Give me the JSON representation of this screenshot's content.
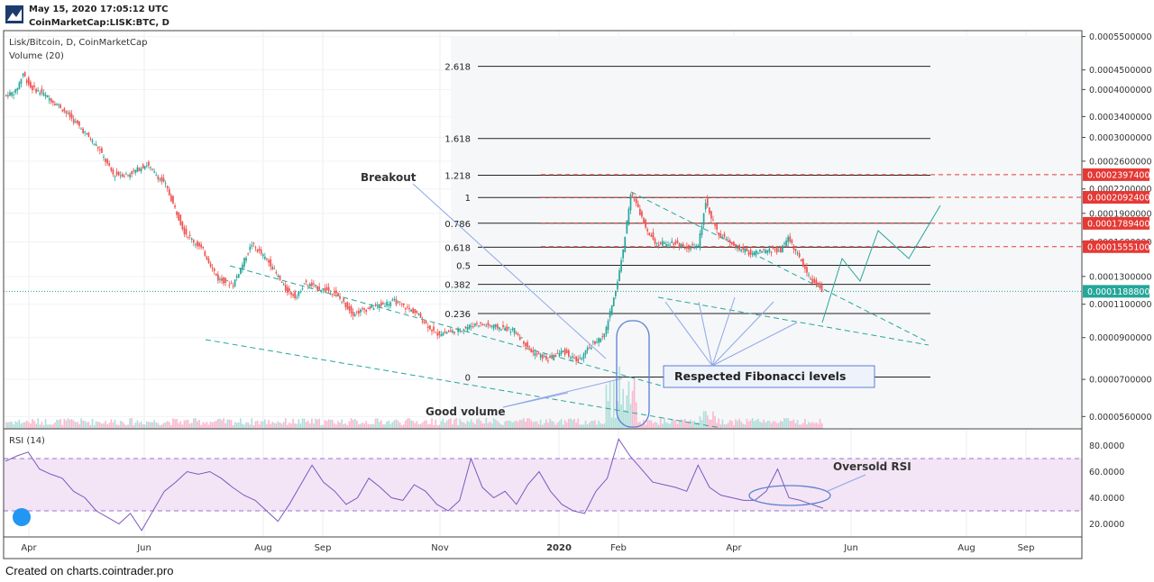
{
  "header": {
    "timestamp": "May 15, 2020 17:05:12 UTC",
    "symbol_line": "CoinMarketCap:LISK:BTC, D"
  },
  "footer": {
    "credit": "Created on charts.cointrader.pro"
  },
  "colors": {
    "up": "#26a69a",
    "down": "#ef5350",
    "fib": "#222222",
    "red_dash": "#e53935",
    "trend": "#26a69a",
    "rsi_line": "#7e57c2",
    "rsi_band": "#f3e5f5",
    "annot": "#8fa6e8",
    "ellipse": "#5b7fd1",
    "price_label_bg": "#e53935",
    "current_label_bg": "#26a69a"
  },
  "chart_data": [
    {
      "type": "candlestick",
      "title": "Lisk/Bitcoin, D, CoinMarketCap",
      "subtitle": "Volume (20)",
      "grid": true,
      "x_ticks": [
        "Apr",
        "Jun",
        "Aug",
        "Sep",
        "Nov",
        "2020",
        "Feb",
        "Apr",
        "Jun",
        "Aug",
        "Sep"
      ],
      "y_scale": "log",
      "y_ticks": [
        "0.0005500000",
        "0.0004500000",
        "0.0004000000",
        "0.0003400000",
        "0.0003000000",
        "0.0002600000",
        "0.0002200000",
        "0.0001900000",
        "0.0001600000",
        "0.0001300000",
        "0.0001100000",
        "0.0000900000",
        "0.0000700000",
        "0.0000560000"
      ],
      "y_tick_values": [
        0.00055,
        0.00045,
        0.0004,
        0.00034,
        0.0003,
        0.00026,
        0.00022,
        0.00019,
        0.00016,
        0.00013,
        0.00011,
        9e-05,
        7e-05,
        5.6e-05
      ],
      "ylim": [
        5.2e-05,
        0.00057
      ],
      "price_path": [
        {
          "t": 0,
          "p": 0.000385
        },
        {
          "t": 6,
          "p": 0.000395
        },
        {
          "t": 10,
          "p": 0.00044
        },
        {
          "t": 14,
          "p": 0.000405
        },
        {
          "t": 20,
          "p": 0.000392
        },
        {
          "t": 30,
          "p": 0.00036
        },
        {
          "t": 40,
          "p": 0.00032
        },
        {
          "t": 50,
          "p": 0.000282
        },
        {
          "t": 58,
          "p": 0.00024
        },
        {
          "t": 66,
          "p": 0.00024
        },
        {
          "t": 76,
          "p": 0.000255
        },
        {
          "t": 86,
          "p": 0.000225
        },
        {
          "t": 96,
          "p": 0.00017
        },
        {
          "t": 106,
          "p": 0.000152
        },
        {
          "t": 114,
          "p": 0.000128
        },
        {
          "t": 122,
          "p": 0.000124
        },
        {
          "t": 132,
          "p": 0.000158
        },
        {
          "t": 142,
          "p": 0.00014
        },
        {
          "t": 150,
          "p": 0.00012
        },
        {
          "t": 156,
          "p": 0.000115
        },
        {
          "t": 160,
          "p": 0.000125
        },
        {
          "t": 166,
          "p": 0.000122
        },
        {
          "t": 176,
          "p": 0.000118
        },
        {
          "t": 186,
          "p": 0.000104
        },
        {
          "t": 196,
          "p": 0.000108
        },
        {
          "t": 208,
          "p": 0.000112
        },
        {
          "t": 220,
          "p": 0.000104
        },
        {
          "t": 230,
          "p": 9.2e-05
        },
        {
          "t": 242,
          "p": 9.4e-05
        },
        {
          "t": 252,
          "p": 9.8e-05
        },
        {
          "t": 262,
          "p": 9.6e-05
        },
        {
          "t": 272,
          "p": 9.4e-05
        },
        {
          "t": 282,
          "p": 8.2e-05
        },
        {
          "t": 290,
          "p": 7.9e-05
        },
        {
          "t": 298,
          "p": 8.3e-05
        },
        {
          "t": 306,
          "p": 7.8e-05
        },
        {
          "t": 314,
          "p": 8.7e-05
        },
        {
          "t": 320,
          "p": 9.1e-05
        },
        {
          "t": 326,
          "p": 0.00012
        },
        {
          "t": 330,
          "p": 0.000152
        },
        {
          "t": 334,
          "p": 0.000215
        },
        {
          "t": 338,
          "p": 0.000195
        },
        {
          "t": 342,
          "p": 0.000175
        },
        {
          "t": 348,
          "p": 0.000158
        },
        {
          "t": 356,
          "p": 0.00016
        },
        {
          "t": 364,
          "p": 0.000155
        },
        {
          "t": 370,
          "p": 0.000155
        },
        {
          "t": 374,
          "p": 0.000205
        },
        {
          "t": 380,
          "p": 0.00017
        },
        {
          "t": 388,
          "p": 0.000157
        },
        {
          "t": 398,
          "p": 0.000149
        },
        {
          "t": 408,
          "p": 0.000152
        },
        {
          "t": 414,
          "p": 0.000152
        },
        {
          "t": 418,
          "p": 0.000165
        },
        {
          "t": 424,
          "p": 0.000145
        },
        {
          "t": 430,
          "p": 0.000128
        },
        {
          "t": 436,
          "p": 0.00012
        }
      ],
      "fib_levels": [
        {
          "label": "2.618",
          "value": 0.00046
        },
        {
          "label": "1.618",
          "value": 0.000298
        },
        {
          "label": "1.218",
          "value": 0.000239
        },
        {
          "label": "1",
          "value": 0.000209
        },
        {
          "label": "0.786",
          "value": 0.000179
        },
        {
          "label": "0.618",
          "value": 0.000155
        },
        {
          "label": "0.5",
          "value": 0.000139
        },
        {
          "label": "0.382",
          "value": 0.000124
        },
        {
          "label": "0.236",
          "value": 0.000104
        },
        {
          "label": "0",
          "value": 7.1e-05
        }
      ],
      "price_labels": [
        {
          "text": "0.0002397400",
          "value": 0.00023974,
          "kind": "target"
        },
        {
          "text": "0.0002092400",
          "value": 0.00020924,
          "kind": "target"
        },
        {
          "text": "0.0001789400",
          "value": 0.00017894,
          "kind": "target"
        },
        {
          "text": "0.0001555100",
          "value": 0.00015551,
          "kind": "target"
        },
        {
          "text": "0.0001188800",
          "value": 0.00011888,
          "kind": "current"
        }
      ],
      "annotations": [
        {
          "text": "Breakout"
        },
        {
          "text": "Respected Fibonacci levels"
        },
        {
          "text": "Good volume"
        }
      ]
    },
    {
      "type": "line",
      "title": "RSI (14)",
      "y_ticks": [
        "80.0000",
        "60.0000",
        "40.0000",
        "20.0000"
      ],
      "y_tick_values": [
        80,
        60,
        40,
        20
      ],
      "ylim": [
        10,
        90
      ],
      "bands": [
        30,
        70
      ],
      "series": [
        {
          "values": [
            68,
            72,
            75,
            62,
            58,
            55,
            45,
            40,
            30,
            25,
            20,
            28,
            15,
            30,
            45,
            52,
            60,
            58,
            60,
            55,
            48,
            42,
            38,
            30,
            22,
            35,
            50,
            65,
            52,
            45,
            35,
            40,
            55,
            48,
            40,
            38,
            50,
            45,
            35,
            30,
            38,
            70,
            48,
            40,
            45,
            35,
            50,
            60,
            45,
            35,
            30,
            28,
            45,
            55,
            85,
            72,
            62,
            52,
            50,
            48,
            45,
            65,
            48,
            42,
            40,
            38,
            38,
            45,
            62,
            40,
            38,
            35,
            32
          ]
        }
      ],
      "annotations": [
        {
          "text": "Oversold RSI"
        }
      ]
    }
  ]
}
